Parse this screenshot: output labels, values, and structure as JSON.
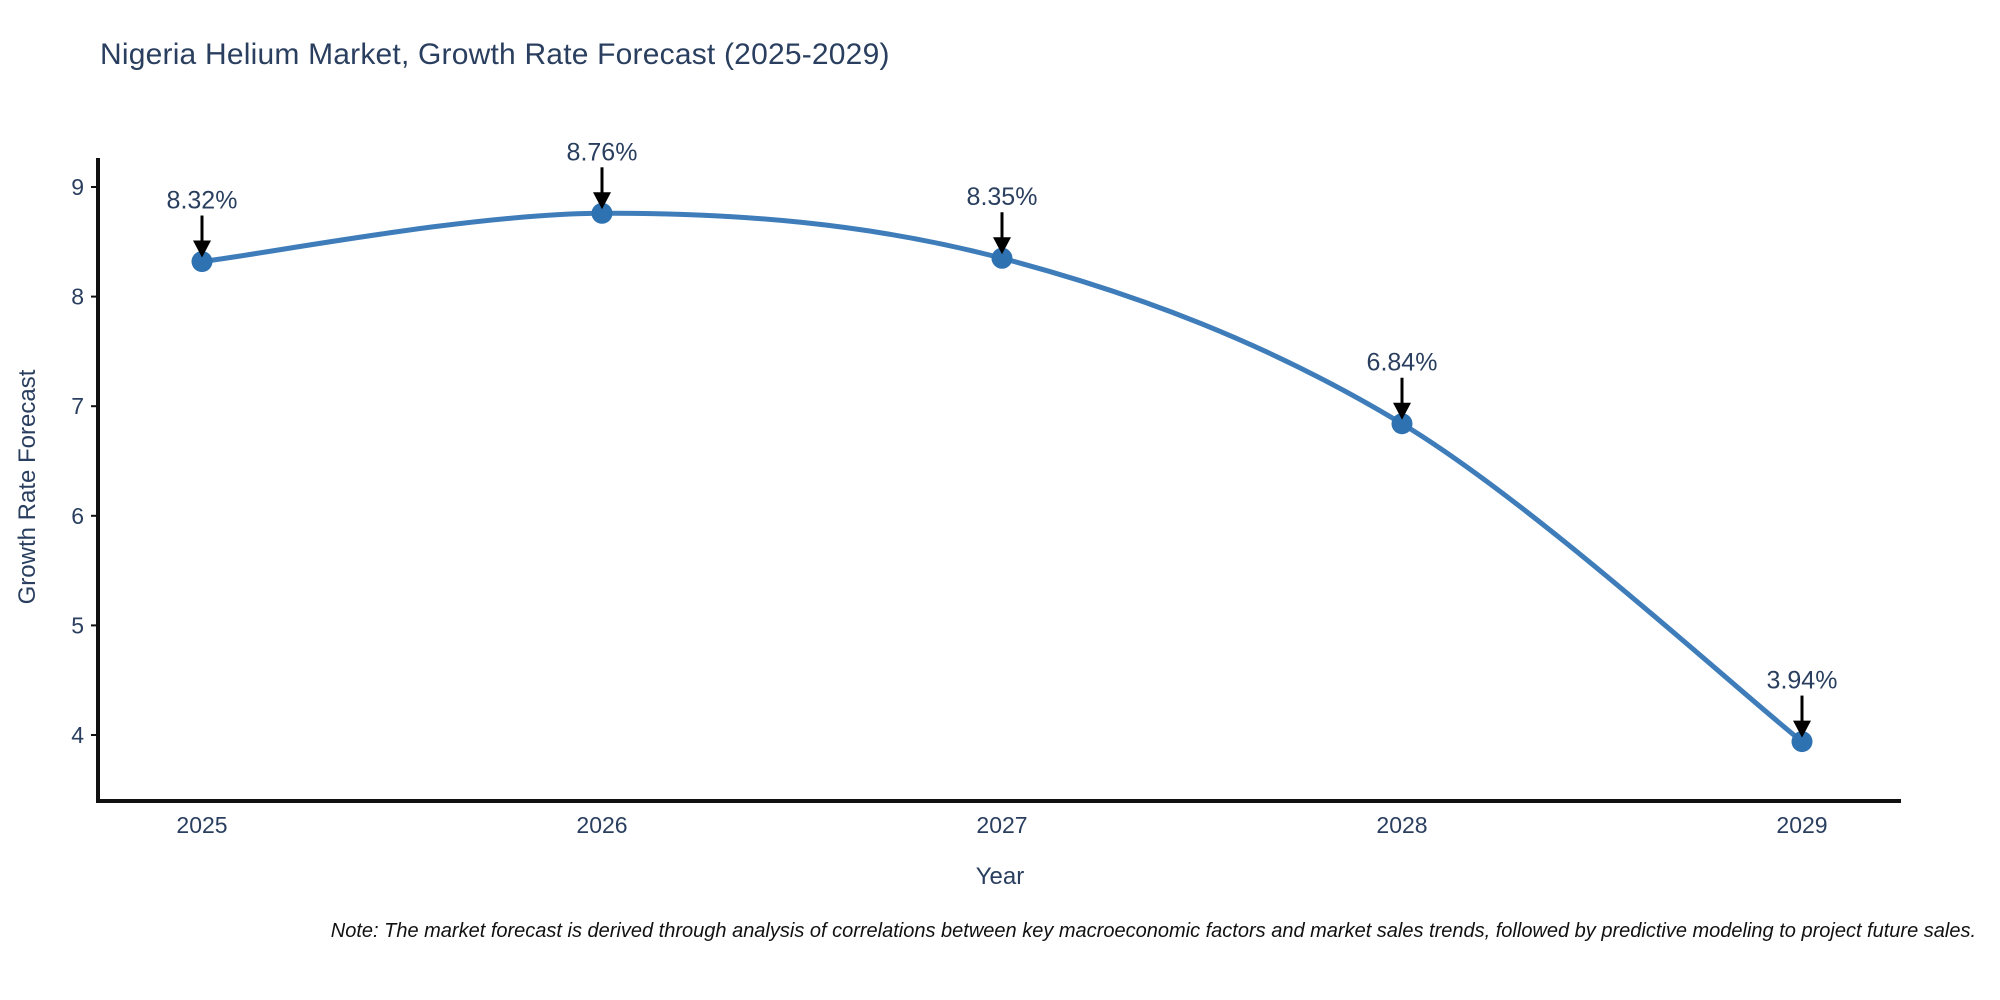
{
  "chart_data": {
    "type": "line",
    "title": "Nigeria Helium Market, Growth Rate Forecast (2025-2029)",
    "xlabel": "Year",
    "ylabel": "Growth Rate Forecast",
    "categories": [
      "2025",
      "2026",
      "2027",
      "2028",
      "2029"
    ],
    "values": [
      8.32,
      8.76,
      8.35,
      6.84,
      3.94
    ],
    "point_labels": [
      "8.32%",
      "8.76%",
      "8.35%",
      "6.84%",
      "3.94%"
    ],
    "yticks": [
      "4",
      "5",
      "6",
      "7",
      "8",
      "9"
    ],
    "ylim": [
      3.4,
      9.25
    ],
    "grid": false,
    "legend": false,
    "line_shape": "spline",
    "colors": {
      "line": "#3e7dba",
      "marker": "#2f72b2",
      "axis": "#111111",
      "text": "#2a3f5f",
      "annotation_text": "#2a3f5f",
      "annotation_arrow": "#000000",
      "background": "#ffffff"
    },
    "note": "Note: The market forecast is derived through analysis of correlations between key macroeconomic factors and market sales trends, followed by predictive modeling to project future sales."
  }
}
